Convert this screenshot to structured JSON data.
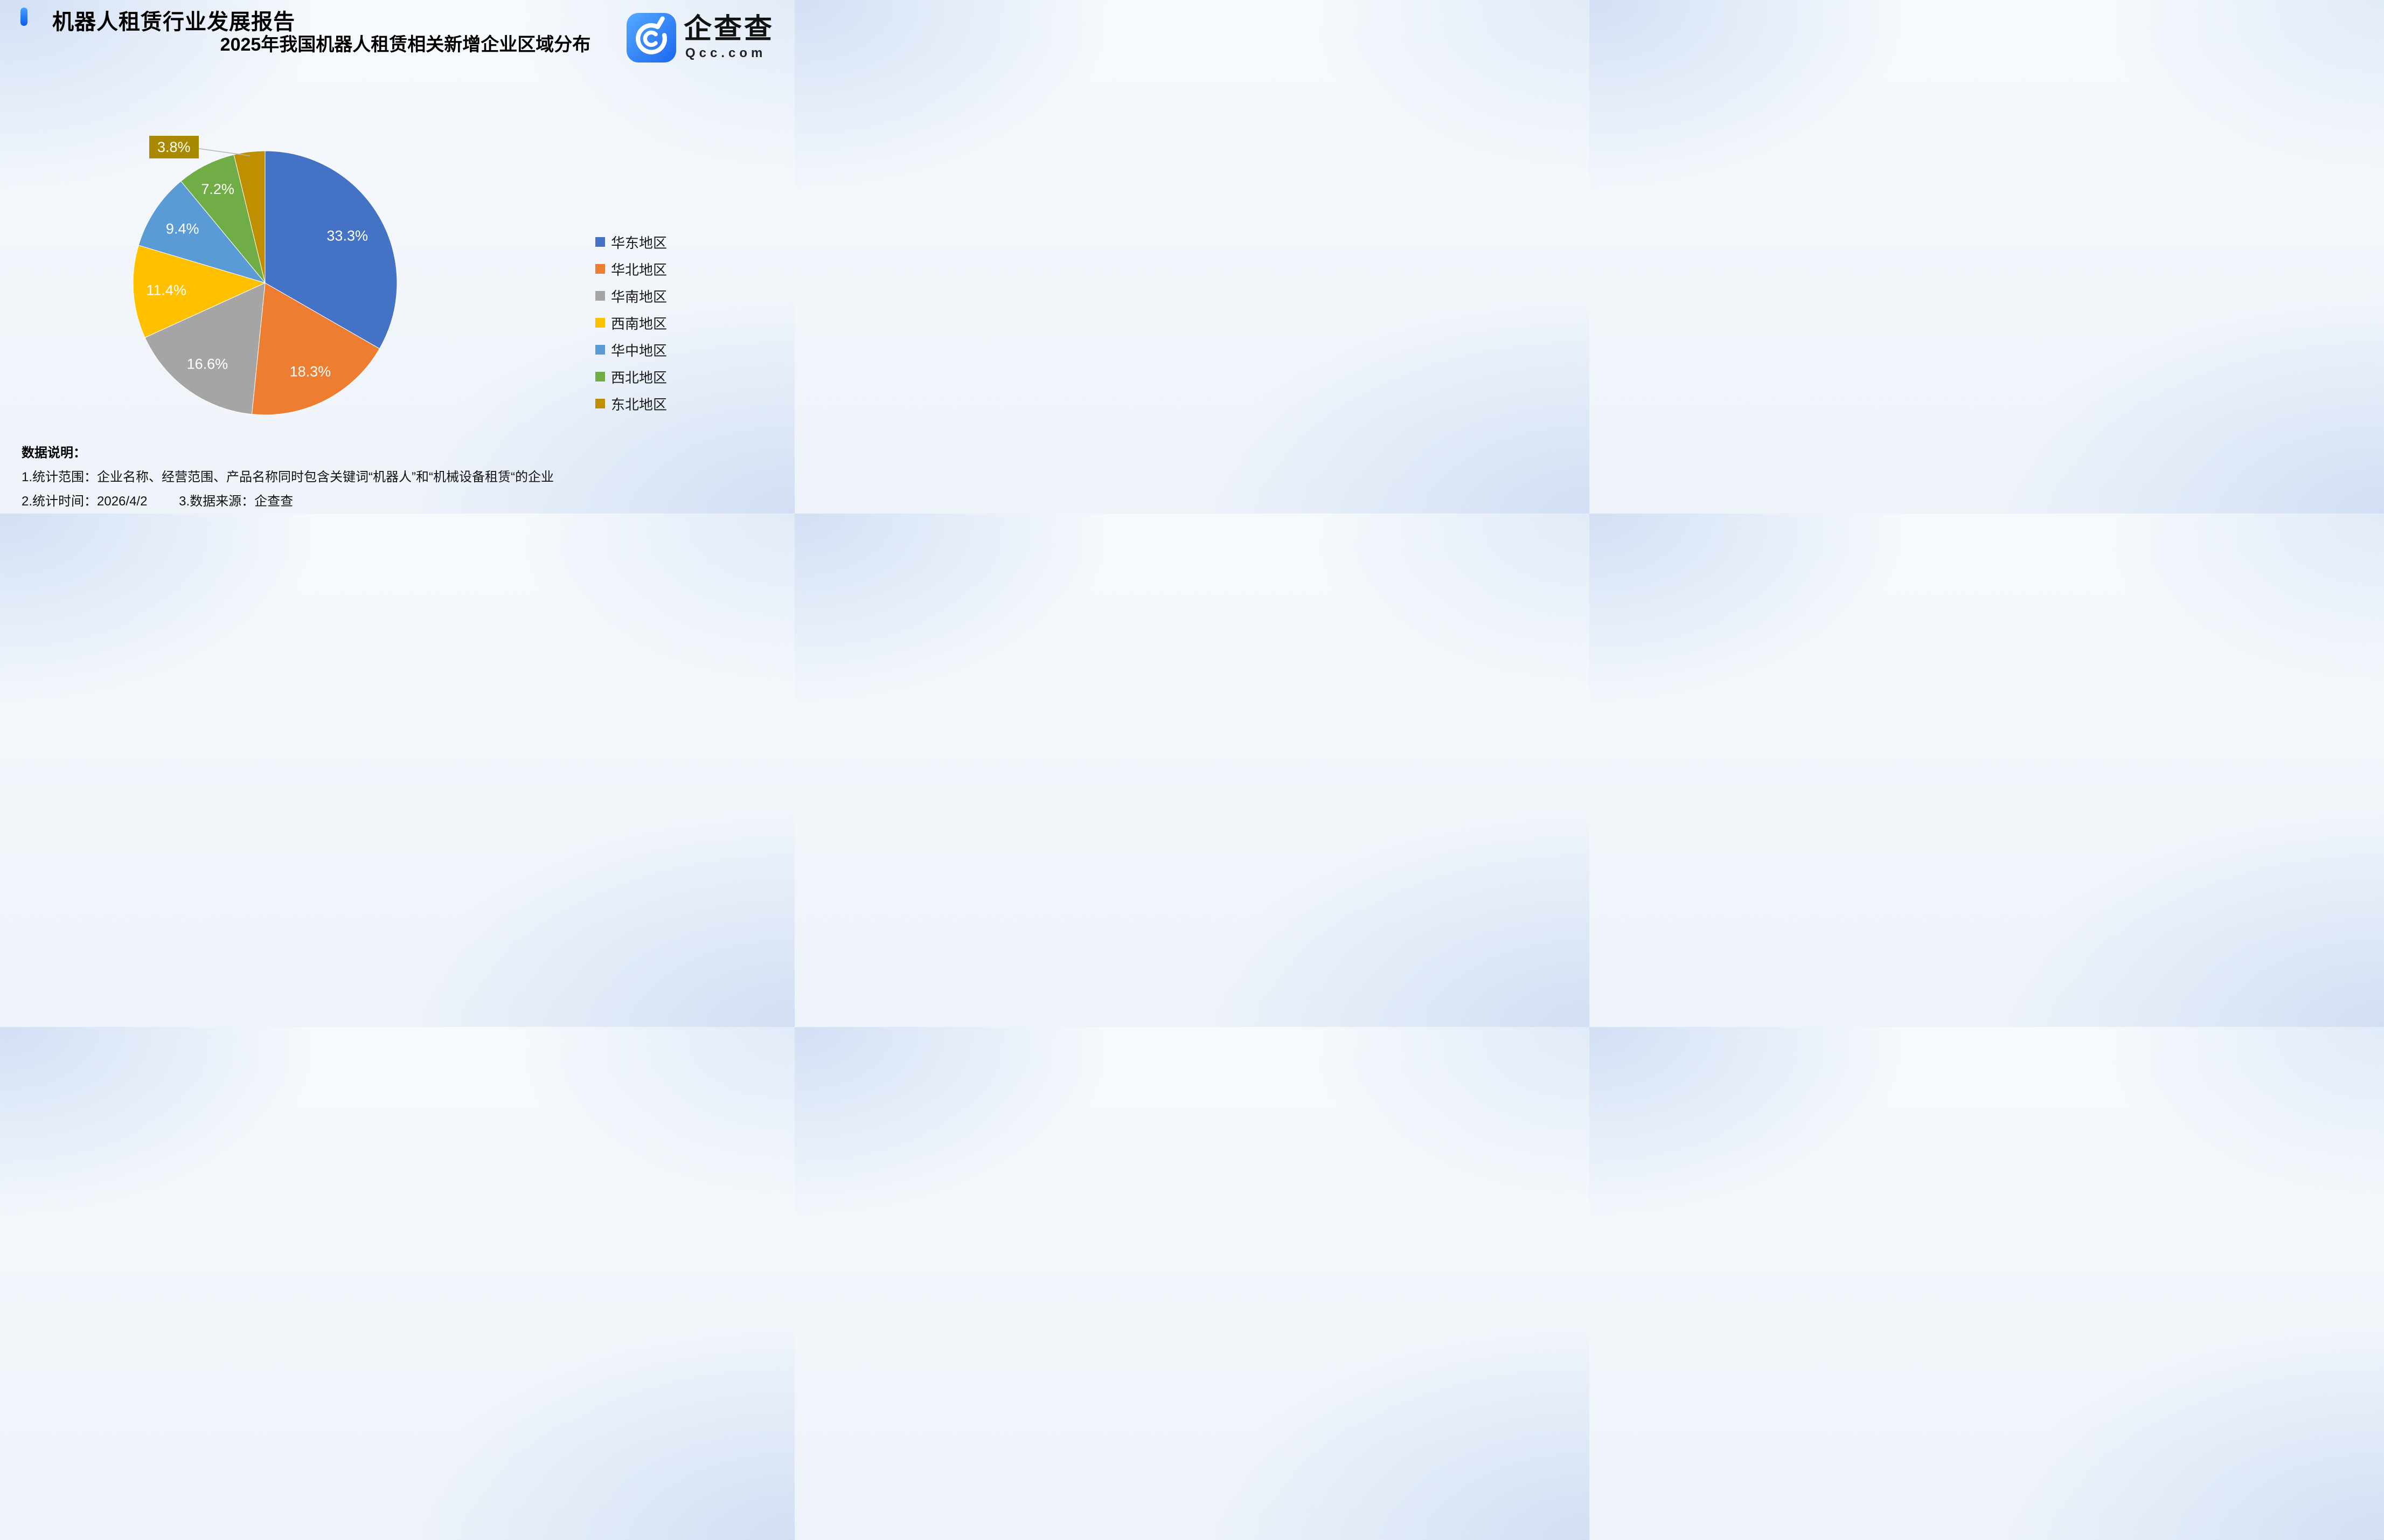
{
  "header": {
    "report_title": "机器人租赁行业发展报告",
    "accent_color": "#1E6BF0"
  },
  "logo": {
    "brand_name": "企查查",
    "brand_domain": "Qcc.com",
    "icon_color": "#2E7FF5"
  },
  "chart_data": {
    "type": "pie",
    "title": "2025年我国机器人租赁相关新增企业区域分布",
    "categories": [
      "华东地区",
      "华北地区",
      "华南地区",
      "西南地区",
      "华中地区",
      "西北地区",
      "东北地区"
    ],
    "values": [
      33.3,
      18.3,
      16.6,
      11.4,
      9.4,
      7.2,
      3.8
    ],
    "labels": [
      "33.3%",
      "18.3%",
      "16.6%",
      "11.4%",
      "9.4%",
      "7.2%",
      "3.8%"
    ],
    "colors": [
      "#4472C4",
      "#ED7D31",
      "#A5A5A5",
      "#FFC000",
      "#5B9BD5",
      "#70AD47",
      "#BF8F00"
    ],
    "callout": {
      "index": 6,
      "label": "3.8%",
      "bg": "#A88900"
    },
    "legend_position": "right",
    "unit": "%",
    "start_angle_deg": 0,
    "direction": "clockwise"
  },
  "footer": {
    "heading": "数据说明：",
    "line1": "1.统计范围：企业名称、经营范围、产品名称同时包含关键词“机器人”和“机械设备租赁“的企业",
    "line2_part1": "2.统计时间：2026/4/2",
    "line2_part2": "3.数据来源：企查查"
  }
}
